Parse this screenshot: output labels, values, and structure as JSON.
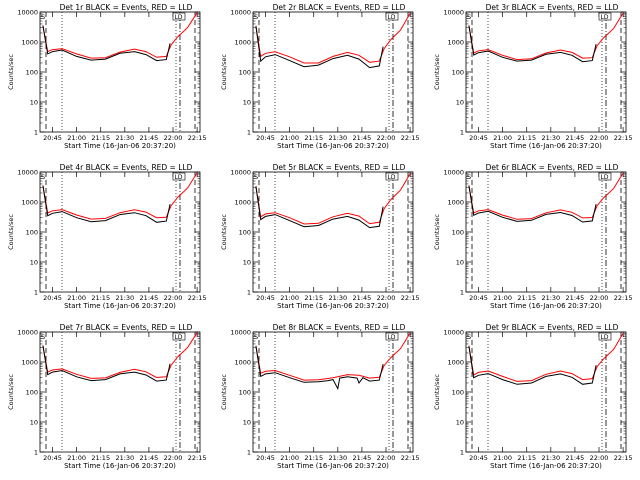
{
  "chart_data": [
    {
      "title": "Det 1r BLACK = Events, RED = LLD",
      "events": [
        [
          20.65,
          3500
        ],
        [
          20.7,
          400
        ],
        [
          20.75,
          480
        ],
        [
          20.85,
          540
        ],
        [
          21.0,
          330
        ],
        [
          21.15,
          250
        ],
        [
          21.3,
          270
        ],
        [
          21.45,
          420
        ],
        [
          21.6,
          480
        ],
        [
          21.72,
          380
        ],
        [
          21.83,
          240
        ],
        [
          21.93,
          260
        ],
        [
          21.97,
          900
        ]
      ],
      "lld": [
        [
          20.65,
          3600
        ],
        [
          20.7,
          480
        ],
        [
          20.75,
          560
        ],
        [
          20.85,
          600
        ],
        [
          21.0,
          400
        ],
        [
          21.15,
          290
        ],
        [
          21.3,
          300
        ],
        [
          21.45,
          460
        ],
        [
          21.6,
          580
        ],
        [
          21.72,
          480
        ],
        [
          21.83,
          310
        ],
        [
          21.93,
          330
        ],
        [
          21.98,
          800
        ],
        [
          22.05,
          1500
        ],
        [
          22.15,
          3000
        ],
        [
          22.25,
          9500
        ]
      ]
    },
    {
      "title": "Det 2r BLACK = Events, RED = LLD",
      "events": [
        [
          20.65,
          3400
        ],
        [
          20.7,
          230
        ],
        [
          20.75,
          320
        ],
        [
          20.85,
          380
        ],
        [
          21.0,
          240
        ],
        [
          21.15,
          150
        ],
        [
          21.3,
          170
        ],
        [
          21.45,
          280
        ],
        [
          21.6,
          360
        ],
        [
          21.72,
          270
        ],
        [
          21.83,
          140
        ],
        [
          21.93,
          160
        ],
        [
          21.97,
          700
        ]
      ],
      "lld": [
        [
          20.65,
          3500
        ],
        [
          20.7,
          330
        ],
        [
          20.75,
          420
        ],
        [
          20.85,
          470
        ],
        [
          21.0,
          320
        ],
        [
          21.15,
          200
        ],
        [
          21.3,
          200
        ],
        [
          21.45,
          330
        ],
        [
          21.6,
          450
        ],
        [
          21.72,
          360
        ],
        [
          21.83,
          210
        ],
        [
          21.93,
          230
        ],
        [
          21.98,
          600
        ],
        [
          22.05,
          1200
        ],
        [
          22.15,
          2500
        ],
        [
          22.25,
          9000
        ]
      ]
    },
    {
      "title": "Det 3r BLACK = Events, RED = LLD",
      "events": [
        [
          20.65,
          3500
        ],
        [
          20.7,
          370
        ],
        [
          20.75,
          440
        ],
        [
          20.85,
          500
        ],
        [
          21.0,
          310
        ],
        [
          21.15,
          230
        ],
        [
          21.3,
          250
        ],
        [
          21.45,
          390
        ],
        [
          21.6,
          450
        ],
        [
          21.72,
          360
        ],
        [
          21.83,
          220
        ],
        [
          21.93,
          240
        ],
        [
          21.97,
          850
        ]
      ],
      "lld": [
        [
          20.65,
          3600
        ],
        [
          20.7,
          430
        ],
        [
          20.75,
          510
        ],
        [
          20.85,
          560
        ],
        [
          21.0,
          360
        ],
        [
          21.15,
          260
        ],
        [
          21.3,
          275
        ],
        [
          21.45,
          430
        ],
        [
          21.6,
          540
        ],
        [
          21.72,
          450
        ],
        [
          21.83,
          290
        ],
        [
          21.93,
          300
        ],
        [
          21.98,
          750
        ],
        [
          22.05,
          1400
        ],
        [
          22.15,
          2800
        ],
        [
          22.25,
          9200
        ]
      ]
    },
    {
      "title": "Det 4r BLACK = Events, RED = LLD",
      "events": [
        [
          20.65,
          3500
        ],
        [
          20.7,
          350
        ],
        [
          20.75,
          420
        ],
        [
          20.85,
          480
        ],
        [
          21.0,
          300
        ],
        [
          21.15,
          220
        ],
        [
          21.3,
          240
        ],
        [
          21.45,
          380
        ],
        [
          21.6,
          440
        ],
        [
          21.72,
          350
        ],
        [
          21.83,
          210
        ],
        [
          21.93,
          230
        ],
        [
          21.97,
          850
        ]
      ],
      "lld": [
        [
          20.65,
          3600
        ],
        [
          20.7,
          430
        ],
        [
          20.75,
          510
        ],
        [
          20.85,
          560
        ],
        [
          21.0,
          370
        ],
        [
          21.15,
          270
        ],
        [
          21.3,
          285
        ],
        [
          21.45,
          440
        ],
        [
          21.6,
          550
        ],
        [
          21.72,
          460
        ],
        [
          21.83,
          300
        ],
        [
          21.93,
          310
        ],
        [
          21.98,
          760
        ],
        [
          22.05,
          1450
        ],
        [
          22.15,
          2900
        ],
        [
          22.25,
          9300
        ]
      ]
    },
    {
      "title": "Det 5r BLACK = Events, RED = LLD",
      "events": [
        [
          20.65,
          3300
        ],
        [
          20.7,
          260
        ],
        [
          20.75,
          330
        ],
        [
          20.85,
          380
        ],
        [
          21.0,
          240
        ],
        [
          21.15,
          150
        ],
        [
          21.3,
          165
        ],
        [
          21.45,
          270
        ],
        [
          21.6,
          330
        ],
        [
          21.72,
          250
        ],
        [
          21.83,
          140
        ],
        [
          21.93,
          155
        ],
        [
          21.97,
          700
        ]
      ],
      "lld": [
        [
          20.65,
          3400
        ],
        [
          20.7,
          320
        ],
        [
          20.75,
          400
        ],
        [
          20.85,
          440
        ],
        [
          21.0,
          300
        ],
        [
          21.15,
          185
        ],
        [
          21.3,
          195
        ],
        [
          21.45,
          320
        ],
        [
          21.6,
          420
        ],
        [
          21.72,
          340
        ],
        [
          21.83,
          190
        ],
        [
          21.93,
          210
        ],
        [
          21.98,
          600
        ],
        [
          22.05,
          1200
        ],
        [
          22.15,
          2500
        ],
        [
          22.25,
          8800
        ]
      ]
    },
    {
      "title": "Det 6r BLACK = Events, RED = LLD",
      "events": [
        [
          20.65,
          3500
        ],
        [
          20.7,
          360
        ],
        [
          20.75,
          430
        ],
        [
          20.85,
          490
        ],
        [
          21.0,
          310
        ],
        [
          21.15,
          225
        ],
        [
          21.3,
          245
        ],
        [
          21.45,
          385
        ],
        [
          21.6,
          445
        ],
        [
          21.72,
          355
        ],
        [
          21.83,
          215
        ],
        [
          21.93,
          235
        ],
        [
          21.97,
          850
        ]
      ],
      "lld": [
        [
          20.65,
          3600
        ],
        [
          20.7,
          430
        ],
        [
          20.75,
          510
        ],
        [
          20.85,
          560
        ],
        [
          21.0,
          365
        ],
        [
          21.15,
          265
        ],
        [
          21.3,
          280
        ],
        [
          21.45,
          435
        ],
        [
          21.6,
          545
        ],
        [
          21.72,
          455
        ],
        [
          21.83,
          295
        ],
        [
          21.93,
          305
        ],
        [
          21.98,
          750
        ],
        [
          22.05,
          1400
        ],
        [
          22.15,
          2800
        ],
        [
          22.25,
          9200
        ]
      ]
    },
    {
      "title": "Det 7r BLACK = Events, RED = LLD",
      "events": [
        [
          20.65,
          3500
        ],
        [
          20.7,
          380
        ],
        [
          20.75,
          460
        ],
        [
          20.85,
          520
        ],
        [
          21.0,
          320
        ],
        [
          21.15,
          240
        ],
        [
          21.3,
          260
        ],
        [
          21.45,
          400
        ],
        [
          21.6,
          460
        ],
        [
          21.72,
          370
        ],
        [
          21.83,
          230
        ],
        [
          21.93,
          250
        ],
        [
          21.97,
          880
        ]
      ],
      "lld": [
        [
          20.65,
          3600
        ],
        [
          20.7,
          460
        ],
        [
          20.75,
          540
        ],
        [
          20.85,
          590
        ],
        [
          21.0,
          390
        ],
        [
          21.15,
          285
        ],
        [
          21.3,
          295
        ],
        [
          21.45,
          450
        ],
        [
          21.6,
          570
        ],
        [
          21.72,
          470
        ],
        [
          21.83,
          305
        ],
        [
          21.93,
          320
        ],
        [
          21.98,
          780
        ],
        [
          22.05,
          1500
        ],
        [
          22.15,
          3000
        ],
        [
          22.25,
          9500
        ]
      ]
    },
    {
      "title": "Det 8r BLACK = Events, RED = LLD",
      "events": [
        [
          20.65,
          3400
        ],
        [
          20.7,
          330
        ],
        [
          20.75,
          400
        ],
        [
          20.85,
          440
        ],
        [
          21.0,
          300
        ],
        [
          21.15,
          210
        ],
        [
          21.3,
          220
        ],
        [
          21.4,
          240
        ],
        [
          21.45,
          260
        ],
        [
          21.5,
          130
        ],
        [
          21.52,
          290
        ],
        [
          21.6,
          320
        ],
        [
          21.7,
          290
        ],
        [
          21.72,
          200
        ],
        [
          21.76,
          300
        ],
        [
          21.83,
          230
        ],
        [
          21.93,
          250
        ],
        [
          21.97,
          850
        ]
      ],
      "lld": [
        [
          20.65,
          3500
        ],
        [
          20.7,
          420
        ],
        [
          20.75,
          490
        ],
        [
          20.85,
          520
        ],
        [
          21.0,
          360
        ],
        [
          21.15,
          250
        ],
        [
          21.3,
          255
        ],
        [
          21.45,
          300
        ],
        [
          21.6,
          380
        ],
        [
          21.72,
          360
        ],
        [
          21.83,
          290
        ],
        [
          21.93,
          310
        ],
        [
          21.98,
          760
        ],
        [
          22.05,
          1400
        ],
        [
          22.15,
          2800
        ],
        [
          22.25,
          9200
        ]
      ]
    },
    {
      "title": "Det 9r BLACK = Events, RED = LLD",
      "events": [
        [
          20.65,
          3400
        ],
        [
          20.7,
          300
        ],
        [
          20.75,
          360
        ],
        [
          20.85,
          410
        ],
        [
          21.0,
          260
        ],
        [
          21.15,
          180
        ],
        [
          21.3,
          200
        ],
        [
          21.45,
          330
        ],
        [
          21.6,
          400
        ],
        [
          21.72,
          310
        ],
        [
          21.83,
          180
        ],
        [
          21.93,
          200
        ],
        [
          21.97,
          780
        ]
      ],
      "lld": [
        [
          20.65,
          3500
        ],
        [
          20.7,
          370
        ],
        [
          20.75,
          450
        ],
        [
          20.85,
          500
        ],
        [
          21.0,
          330
        ],
        [
          21.15,
          225
        ],
        [
          21.3,
          240
        ],
        [
          21.45,
          390
        ],
        [
          21.6,
          500
        ],
        [
          21.72,
          410
        ],
        [
          21.83,
          260
        ],
        [
          21.93,
          280
        ],
        [
          21.98,
          700
        ],
        [
          22.05,
          1300
        ],
        [
          22.15,
          2600
        ],
        [
          22.25,
          9000
        ]
      ]
    }
  ],
  "axes": {
    "type": "line",
    "xlabel": "Start Time (16-Jan-06 20:37:20)",
    "ylabel": "Counts/sec",
    "x_ticks": [
      {
        "label": "20:45",
        "value": 20.75
      },
      {
        "label": "21:00",
        "value": 21.0
      },
      {
        "label": "21:15",
        "value": 21.25
      },
      {
        "label": "21:30",
        "value": 21.5
      },
      {
        "label": "21:45",
        "value": 21.75
      },
      {
        "label": "22:00",
        "value": 22.0
      },
      {
        "label": "22:15",
        "value": 22.25
      }
    ],
    "y_ticks": [
      {
        "label": "1",
        "value": 1
      },
      {
        "label": "10",
        "value": 10
      },
      {
        "label": "100",
        "value": 100
      },
      {
        "label": "1000",
        "value": 1000
      },
      {
        "label": "10000",
        "value": 10000
      }
    ],
    "xlim": [
      20.62,
      22.28
    ],
    "ylim": [
      1,
      10000
    ],
    "y_scale": "log",
    "marker_labels": [
      "S",
      "LD"
    ],
    "colors": {
      "events": "#000000",
      "lld": "#ff0000",
      "axes": "#000000"
    }
  }
}
